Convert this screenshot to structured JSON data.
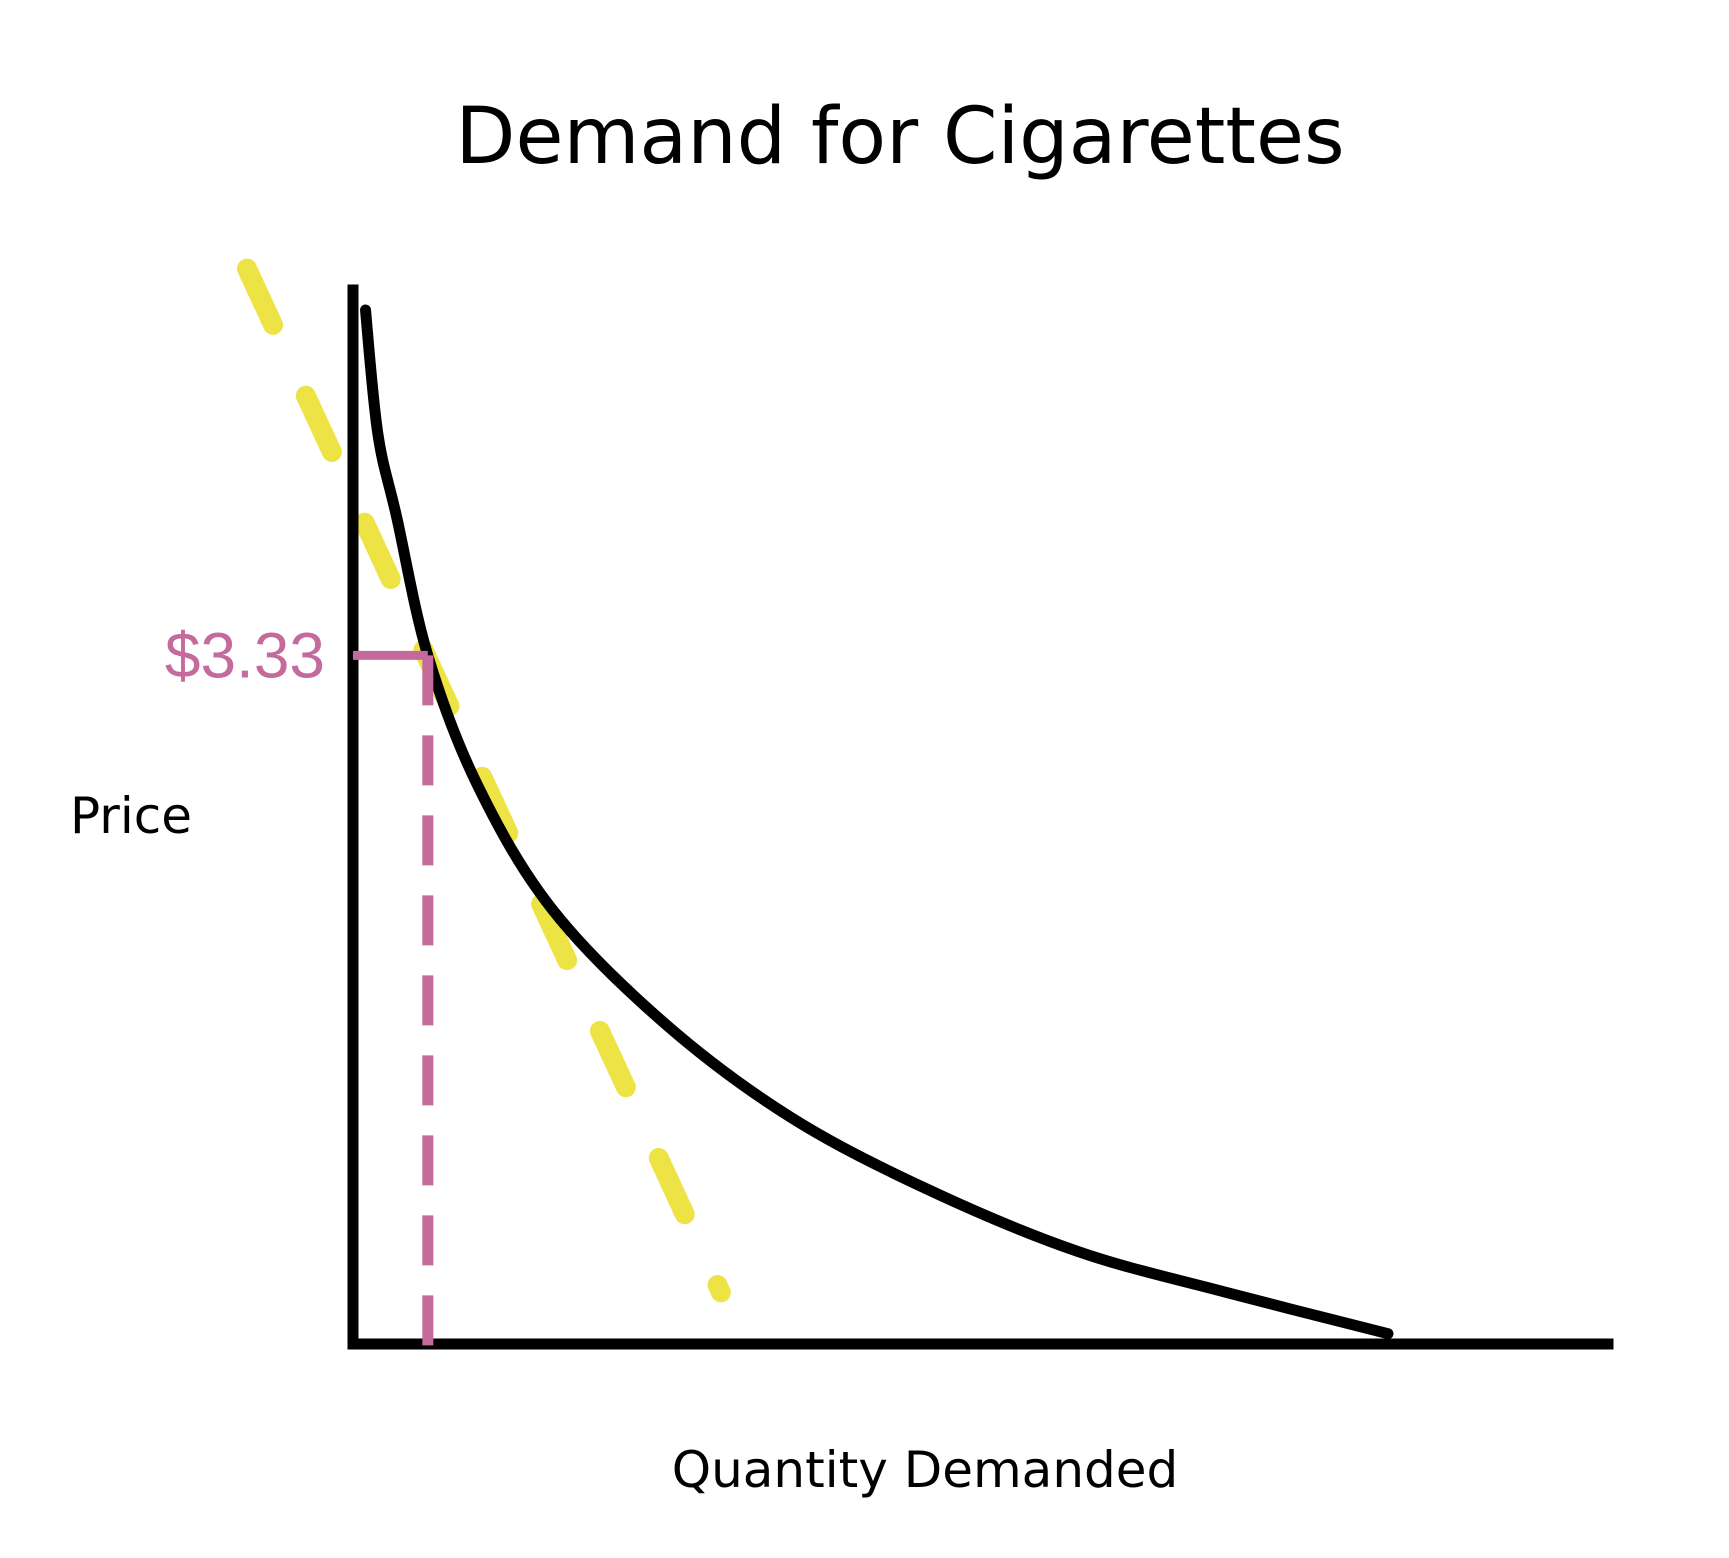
{
  "chart_data": {
    "type": "line",
    "title": "Demand for Cigarettes",
    "xlabel": "Quantity Demanded",
    "ylabel": "Price",
    "xlim": [
      0,
      10
    ],
    "ylim": [
      0,
      5
    ],
    "grid": false,
    "legend": "none",
    "colors": {
      "axes": "#000000",
      "demand_curve": "#000000",
      "tangent_line": "#ece23a",
      "price_marker": "#c46a9c"
    },
    "series": [
      {
        "style": "solid",
        "color": "#000000",
        "points": [
          [
            0.1,
            5.0
          ],
          [
            0.2,
            4.4
          ],
          [
            0.35,
            4.0
          ],
          [
            0.6,
            3.33
          ],
          [
            1.0,
            2.7
          ],
          [
            1.6,
            2.1
          ],
          [
            2.5,
            1.55
          ],
          [
            3.5,
            1.1
          ],
          [
            4.6,
            0.75
          ],
          [
            5.8,
            0.45
          ],
          [
            7.0,
            0.25
          ],
          [
            8.3,
            0.05
          ]
        ]
      },
      {
        "style": "dashed",
        "color": "#ece23a",
        "points": [
          [
            -0.85,
            5.2
          ],
          [
            2.95,
            0.25
          ]
        ]
      }
    ],
    "annotations": [
      {
        "text": "$3.33",
        "x": 0.6,
        "y": 3.33,
        "color": "#c46a9c"
      }
    ]
  }
}
